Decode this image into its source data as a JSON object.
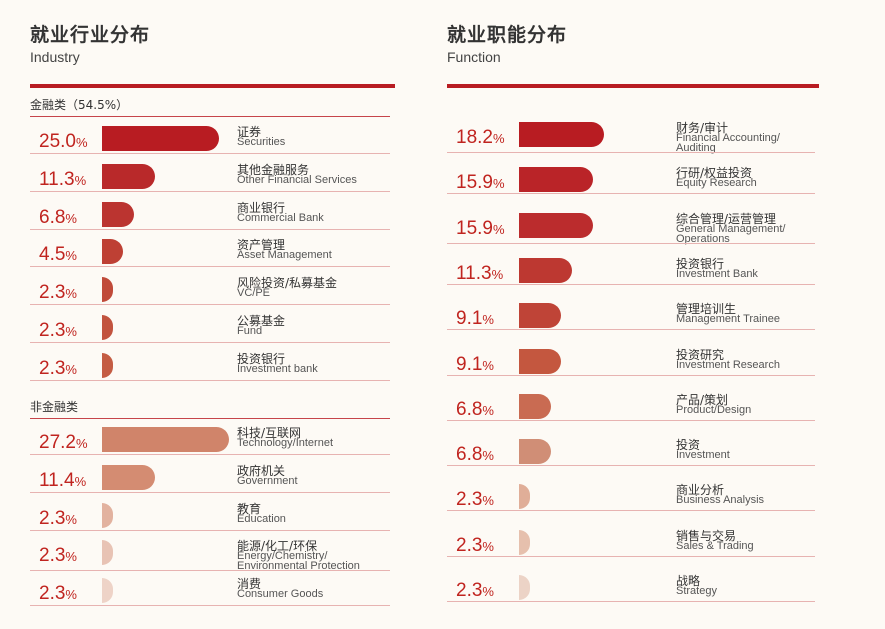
{
  "chart_data": [
    {
      "type": "bar",
      "title": "就业行业分布",
      "subtitle": "Industry",
      "groups": [
        {
          "label": "金融类（54.5%）",
          "items": [
            {
              "value": 25.0,
              "label": "25.0",
              "cn": "证券",
              "en": [
                "Securities"
              ]
            },
            {
              "value": 11.3,
              "label": "11.3",
              "cn": "其他金融服务",
              "en": [
                "Other Financial Services"
              ]
            },
            {
              "value": 6.8,
              "label": "6.8",
              "cn": "商业银行",
              "en": [
                "Commercial Bank"
              ]
            },
            {
              "value": 4.5,
              "label": "4.5",
              "cn": "资产管理",
              "en": [
                "Asset Management"
              ]
            },
            {
              "value": 2.3,
              "label": "2.3",
              "cn": "风险投资/私募基金",
              "en": [
                "VC/PE"
              ]
            },
            {
              "value": 2.3,
              "label": "2.3",
              "cn": "公募基金",
              "en": [
                "Fund"
              ]
            },
            {
              "value": 2.3,
              "label": "2.3",
              "cn": "投资银行",
              "en": [
                "Investment bank"
              ]
            }
          ]
        },
        {
          "label": "非金融类",
          "items": [
            {
              "value": 27.2,
              "label": "27.2",
              "cn": "科技/互联网",
              "en": [
                "Technology/Internet"
              ]
            },
            {
              "value": 11.4,
              "label": "11.4",
              "cn": "政府机关",
              "en": [
                "Government"
              ]
            },
            {
              "value": 2.3,
              "label": "2.3",
              "cn": "教育",
              "en": [
                "Education"
              ]
            },
            {
              "value": 2.3,
              "label": "2.3",
              "cn": "能源/化工/环保",
              "en": [
                "Energy/Chemistry/",
                "Environmental Protection"
              ]
            },
            {
              "value": 2.3,
              "label": "2.3",
              "cn": "消费",
              "en": [
                "Consumer Goods"
              ]
            }
          ]
        }
      ]
    },
    {
      "type": "bar",
      "title": "就业职能分布",
      "subtitle": "Function",
      "items": [
        {
          "value": 18.2,
          "label": "18.2",
          "cn": "财务/审计",
          "en": [
            "Financial Accounting/",
            "Auditing"
          ]
        },
        {
          "value": 15.9,
          "label": "15.9",
          "cn": "行研/权益投资",
          "en": [
            "Equity Research"
          ]
        },
        {
          "value": 15.9,
          "label": "15.9",
          "cn": "综合管理/运营管理",
          "en": [
            "General Management/",
            "Operations"
          ]
        },
        {
          "value": 11.3,
          "label": "11.3",
          "cn": "投资银行",
          "en": [
            "Investment Bank"
          ]
        },
        {
          "value": 9.1,
          "label": "9.1",
          "cn": "管理培训生",
          "en": [
            "Management Trainee"
          ]
        },
        {
          "value": 9.1,
          "label": "9.1",
          "cn": "投资研究",
          "en": [
            "Investment Research"
          ]
        },
        {
          "value": 6.8,
          "label": "6.8",
          "cn": "产品/策划",
          "en": [
            "Product/Design"
          ]
        },
        {
          "value": 6.8,
          "label": "6.8",
          "cn": "投资",
          "en": [
            "Investment"
          ]
        },
        {
          "value": 2.3,
          "label": "2.3",
          "cn": "商业分析",
          "en": [
            "Business Analysis"
          ]
        },
        {
          "value": 2.3,
          "label": "2.3",
          "cn": "销售与交易",
          "en": [
            "Sales & Trading"
          ]
        },
        {
          "value": 2.3,
          "label": "2.3",
          "cn": "战略",
          "en": [
            "Strategy"
          ]
        }
      ]
    }
  ],
  "percent_sign": "%",
  "colors": {
    "accent": "#b81c22",
    "finance": [
      "#b81c22",
      "#b9292a",
      "#bb3430",
      "#be4034",
      "#c04a39",
      "#c2533e",
      "#c45c43"
    ],
    "nonfinance": [
      "#d0846a",
      "#d48c72",
      "#e2b29f",
      "#e8c3b4",
      "#eed3c7"
    ],
    "function": [
      "#b81c22",
      "#ba2428",
      "#bb2c2d",
      "#bd3831",
      "#bf4437",
      "#c4573f",
      "#c96b52",
      "#d08e76",
      "#e0ae98",
      "#e6c0ad",
      "#ecd3c6"
    ]
  }
}
